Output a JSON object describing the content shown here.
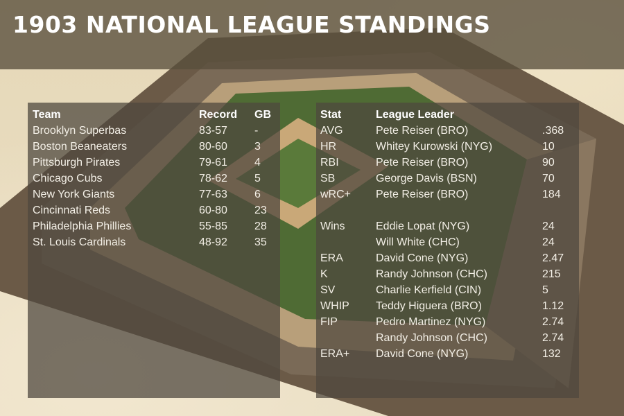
{
  "title": "1903 NATIONAL LEAGUE STANDINGS",
  "colors": {
    "title_bar": "#584e3c",
    "panel": "#4e483e",
    "grass": "#4f6b34",
    "dirt": "#c9a878",
    "stands": "#5d4b3a",
    "text": "#f1eee6"
  },
  "standings": {
    "headers": {
      "team": "Team",
      "record": "Record",
      "gb": "GB"
    },
    "rows": [
      {
        "team": "Brooklyn Superbas",
        "record": "83-57",
        "gb": "-"
      },
      {
        "team": "Boston Beaneaters",
        "record": "80-60",
        "gb": "3"
      },
      {
        "team": "Pittsburgh Pirates",
        "record": "79-61",
        "gb": "4"
      },
      {
        "team": "Chicago Cubs",
        "record": "78-62",
        "gb": "5"
      },
      {
        "team": "New York Giants",
        "record": "77-63",
        "gb": "6"
      },
      {
        "team": "Cincinnati Reds",
        "record": "60-80",
        "gb": "23"
      },
      {
        "team": "Philadelphia Phillies",
        "record": "55-85",
        "gb": "28"
      },
      {
        "team": "St. Louis Cardinals",
        "record": "48-92",
        "gb": "35"
      }
    ]
  },
  "leaders": {
    "headers": {
      "stat": "Stat",
      "leader": "League Leader",
      "value": ""
    },
    "rows": [
      {
        "stat": "AVG",
        "leader": "Pete Reiser (BRO)",
        "value": ".368"
      },
      {
        "stat": "HR",
        "leader": "Whitey Kurowski (NYG)",
        "value": "10"
      },
      {
        "stat": "RBI",
        "leader": "Pete Reiser (BRO)",
        "value": "90"
      },
      {
        "stat": "SB",
        "leader": "George Davis (BSN)",
        "value": "70"
      },
      {
        "stat": "wRC+",
        "leader": "Pete Reiser (BRO)",
        "value": "184"
      },
      {
        "stat": "",
        "leader": "",
        "value": ""
      },
      {
        "stat": "Wins",
        "leader": "Eddie Lopat (NYG)",
        "value": "24"
      },
      {
        "stat": "",
        "leader": "Will White (CHC)",
        "value": "24"
      },
      {
        "stat": "ERA",
        "leader": "David Cone (NYG)",
        "value": "2.47"
      },
      {
        "stat": "K",
        "leader": "Randy Johnson (CHC)",
        "value": "215"
      },
      {
        "stat": "SV",
        "leader": "Charlie Kerfield (CIN)",
        "value": "5"
      },
      {
        "stat": "WHIP",
        "leader": "Teddy Higuera (BRO)",
        "value": "1.12"
      },
      {
        "stat": "FIP",
        "leader": "Pedro Martinez (NYG)",
        "value": "2.74"
      },
      {
        "stat": "",
        "leader": "Randy Johnson (CHC)",
        "value": "2.74"
      },
      {
        "stat": "ERA+",
        "leader": "David Cone (NYG)",
        "value": "132"
      }
    ]
  }
}
